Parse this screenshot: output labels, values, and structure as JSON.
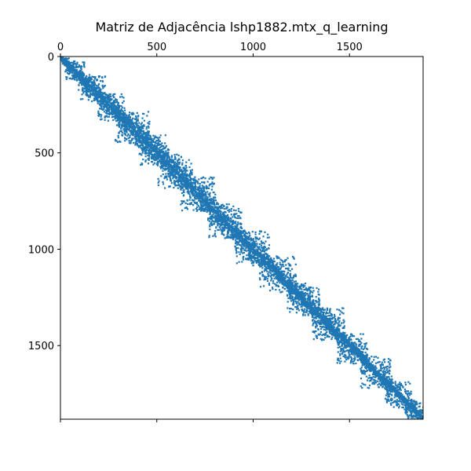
{
  "chart_data": {
    "type": "heatmap",
    "subtype": "sparsity-pattern",
    "title": "Matriz de Adjacência lshp1882.mtx_q_learning",
    "xlabel": "",
    "ylabel": "",
    "matrix_size": 1882,
    "xlim": [
      0,
      1882
    ],
    "ylim": [
      1882,
      0
    ],
    "x_ticks": [
      0,
      500,
      1000,
      1500
    ],
    "y_ticks": [
      0,
      500,
      1000,
      1500
    ],
    "x_axis_position": "top",
    "y_axis_inverted": true,
    "grid": false,
    "marker_color": "#1f77b4",
    "description_of_pattern": "banded, near-diagonal nonzeros forming staircase blocks along the main diagonal",
    "band_profile": {
      "positions": [
        0,
        100,
        250,
        400,
        550,
        700,
        850,
        1000,
        1150,
        1300,
        1450,
        1600,
        1750,
        1882
      ],
      "half_width": [
        15,
        40,
        60,
        70,
        75,
        70,
        70,
        55,
        50,
        45,
        40,
        35,
        25,
        10
      ]
    },
    "diagonal_blocks": [
      {
        "start": 0,
        "end": 40
      },
      {
        "start": 20,
        "end": 120
      },
      {
        "start": 90,
        "end": 230
      },
      {
        "start": 190,
        "end": 330
      },
      {
        "start": 280,
        "end": 460
      },
      {
        "start": 400,
        "end": 560
      },
      {
        "start": 500,
        "end": 680
      },
      {
        "start": 620,
        "end": 800
      },
      {
        "start": 760,
        "end": 940
      },
      {
        "start": 900,
        "end": 1080
      },
      {
        "start": 1030,
        "end": 1220
      },
      {
        "start": 1170,
        "end": 1340
      },
      {
        "start": 1300,
        "end": 1470
      },
      {
        "start": 1430,
        "end": 1590
      },
      {
        "start": 1550,
        "end": 1720
      },
      {
        "start": 1680,
        "end": 1820
      },
      {
        "start": 1780,
        "end": 1882
      }
    ]
  }
}
